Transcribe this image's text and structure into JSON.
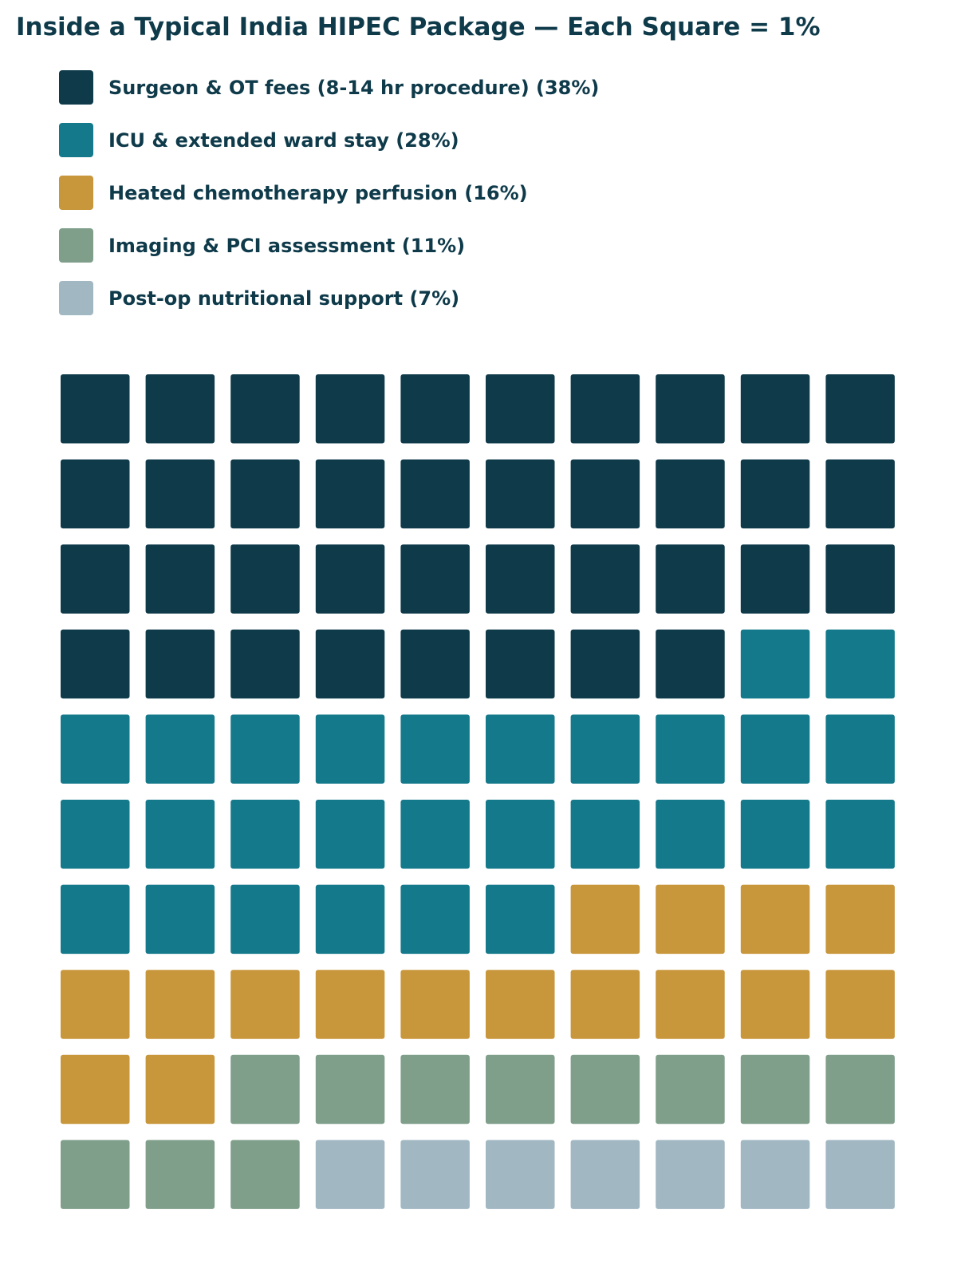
{
  "chart_data": {
    "type": "waffle",
    "title": "Inside a Typical India HIPEC Package — Each Square = 1%",
    "grid": {
      "rows": 10,
      "columns": 10,
      "unit_percent": 1
    },
    "legend_position": "top-left",
    "series": [
      {
        "name": "Surgeon & OT fees (8-14 hr procedure) (38%)",
        "value": 38,
        "color": "#0e3a4a"
      },
      {
        "name": "ICU & extended ward stay (28%)",
        "value": 28,
        "color": "#147a8b"
      },
      {
        "name": "Heated chemotherapy perfusion (16%)",
        "value": 16,
        "color": "#c8963b"
      },
      {
        "name": "Imaging & PCI assessment (11%)",
        "value": 11,
        "color": "#7f9f8a"
      },
      {
        "name": "Post-op nutritional support (7%)",
        "value": 7,
        "color": "#a1b7c2"
      }
    ]
  }
}
